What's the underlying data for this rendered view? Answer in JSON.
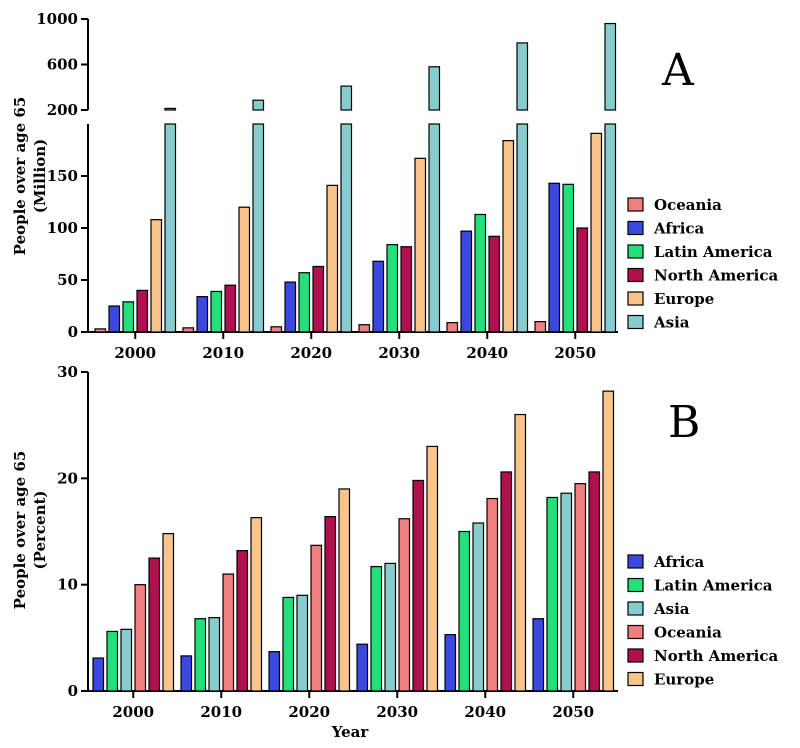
{
  "chart_data": [
    {
      "type": "bar",
      "panel_label": "A",
      "categories": [
        "2000",
        "2010",
        "2020",
        "2030",
        "2040",
        "2050"
      ],
      "ylabel": "People over age 65",
      "ylabel_unit": "(Million)",
      "xlabel": "",
      "y_axis_break": {
        "lower_range": [
          0,
          200
        ],
        "lower_ticks": [
          "0",
          "50",
          "100",
          "150"
        ],
        "upper_range": [
          200,
          1000
        ],
        "upper_ticks": [
          "200",
          "600",
          "1000"
        ]
      },
      "legend_position": "right",
      "series": [
        {
          "name": "Oceania",
          "color": "#f08080",
          "values": [
            3,
            4,
            5,
            7,
            9,
            10
          ]
        },
        {
          "name": "Africa",
          "color": "#3b48e0",
          "values": [
            25,
            34,
            48,
            68,
            97,
            143
          ]
        },
        {
          "name": "Latin America",
          "color": "#22e07a",
          "values": [
            29,
            39,
            57,
            84,
            113,
            142
          ]
        },
        {
          "name": "North America",
          "color": "#b0104e",
          "values": [
            40,
            45,
            63,
            82,
            92,
            100
          ]
        },
        {
          "name": "Europe",
          "color": "#f9c48c",
          "values": [
            108,
            120,
            141,
            167,
            184,
            191
          ]
        },
        {
          "name": "Asia",
          "color": "#86cdcf",
          "values": [
            214,
            286,
            410,
            580,
            790,
            960
          ]
        }
      ]
    },
    {
      "type": "bar",
      "panel_label": "B",
      "categories": [
        "2000",
        "2010",
        "2020",
        "2030",
        "2040",
        "2050"
      ],
      "ylabel": "People over age 65",
      "ylabel_unit": "(Percent)",
      "xlabel": "Year",
      "ylim": [
        0,
        30
      ],
      "yticks": [
        "0",
        "10",
        "20",
        "30"
      ],
      "legend_position": "right",
      "series": [
        {
          "name": "Africa",
          "color": "#3b48e0",
          "values": [
            3.1,
            3.3,
            3.7,
            4.4,
            5.3,
            6.8
          ]
        },
        {
          "name": "Latin America",
          "color": "#22e07a",
          "values": [
            5.6,
            6.8,
            8.8,
            11.7,
            15.0,
            18.2
          ]
        },
        {
          "name": "Asia",
          "color": "#86cdcf",
          "values": [
            5.8,
            6.9,
            9.0,
            12.0,
            15.8,
            18.6
          ]
        },
        {
          "name": "Oceania",
          "color": "#f08080",
          "values": [
            10.0,
            11.0,
            13.7,
            16.2,
            18.1,
            19.5
          ]
        },
        {
          "name": "North America",
          "color": "#b0104e",
          "values": [
            12.5,
            13.2,
            16.4,
            19.8,
            20.6,
            20.6
          ]
        },
        {
          "name": "Europe",
          "color": "#f9c48c",
          "values": [
            14.8,
            16.3,
            19.0,
            23.0,
            26.0,
            28.2
          ]
        }
      ]
    }
  ]
}
